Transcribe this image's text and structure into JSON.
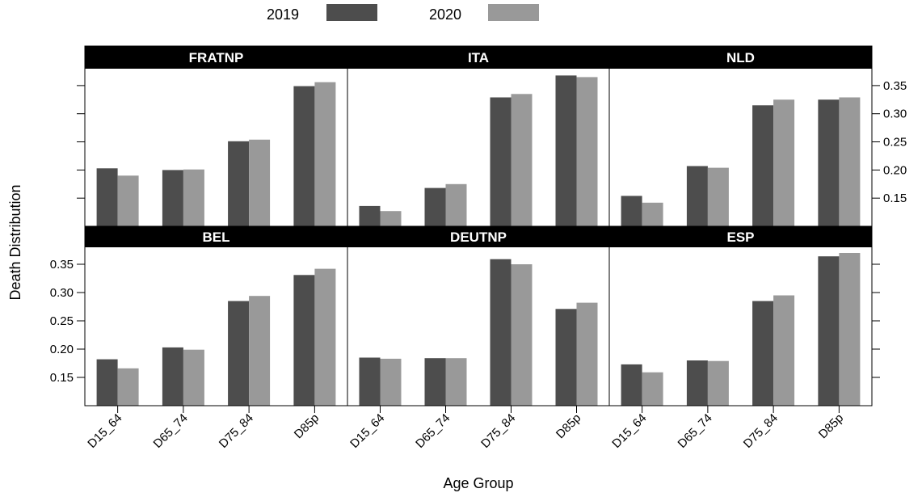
{
  "colors": {
    "series_2019": "#4d4d4d",
    "series_2020": "#999999",
    "strip": "#000000",
    "frame": "#000000",
    "background": "#ffffff"
  },
  "chart_data": {
    "type": "bar",
    "layout": "trellis",
    "xlabel": "Age Group",
    "ylabel": "Death Distribution",
    "categories": [
      "D15_64",
      "D65_74",
      "D75_84",
      "D85p"
    ],
    "ylim": [
      0.1,
      0.38
    ],
    "yticks": [
      0.15,
      0.2,
      0.25,
      0.3,
      0.35
    ],
    "ytick_labels": [
      "0.15",
      "0.20",
      "0.25",
      "0.30",
      "0.35"
    ],
    "grid": false,
    "legend": {
      "placement": "top",
      "entries": [
        "2019",
        "2020"
      ]
    },
    "panels": [
      {
        "name": "FRATNP",
        "series": [
          {
            "name": "2019",
            "values": [
              0.203,
              0.2,
              0.251,
              0.349
            ]
          },
          {
            "name": "2020",
            "values": [
              0.19,
              0.201,
              0.254,
              0.356
            ]
          }
        ]
      },
      {
        "name": "ITA",
        "series": [
          {
            "name": "2019",
            "values": [
              0.136,
              0.168,
              0.329,
              0.368
            ]
          },
          {
            "name": "2020",
            "values": [
              0.127,
              0.175,
              0.335,
              0.365
            ]
          }
        ]
      },
      {
        "name": "NLD",
        "series": [
          {
            "name": "2019",
            "values": [
              0.154,
              0.207,
              0.315,
              0.325
            ]
          },
          {
            "name": "2020",
            "values": [
              0.142,
              0.204,
              0.325,
              0.329
            ]
          }
        ]
      },
      {
        "name": "BEL",
        "series": [
          {
            "name": "2019",
            "values": [
              0.182,
              0.203,
              0.285,
              0.331
            ]
          },
          {
            "name": "2020",
            "values": [
              0.166,
              0.199,
              0.294,
              0.342
            ]
          }
        ]
      },
      {
        "name": "DEUTNP",
        "series": [
          {
            "name": "2019",
            "values": [
              0.185,
              0.184,
              0.359,
              0.271
            ]
          },
          {
            "name": "2020",
            "values": [
              0.183,
              0.184,
              0.35,
              0.282
            ]
          }
        ]
      },
      {
        "name": "ESP",
        "series": [
          {
            "name": "2019",
            "values": [
              0.173,
              0.18,
              0.285,
              0.364
            ]
          },
          {
            "name": "2020",
            "values": [
              0.159,
              0.179,
              0.295,
              0.37
            ]
          }
        ]
      }
    ]
  }
}
